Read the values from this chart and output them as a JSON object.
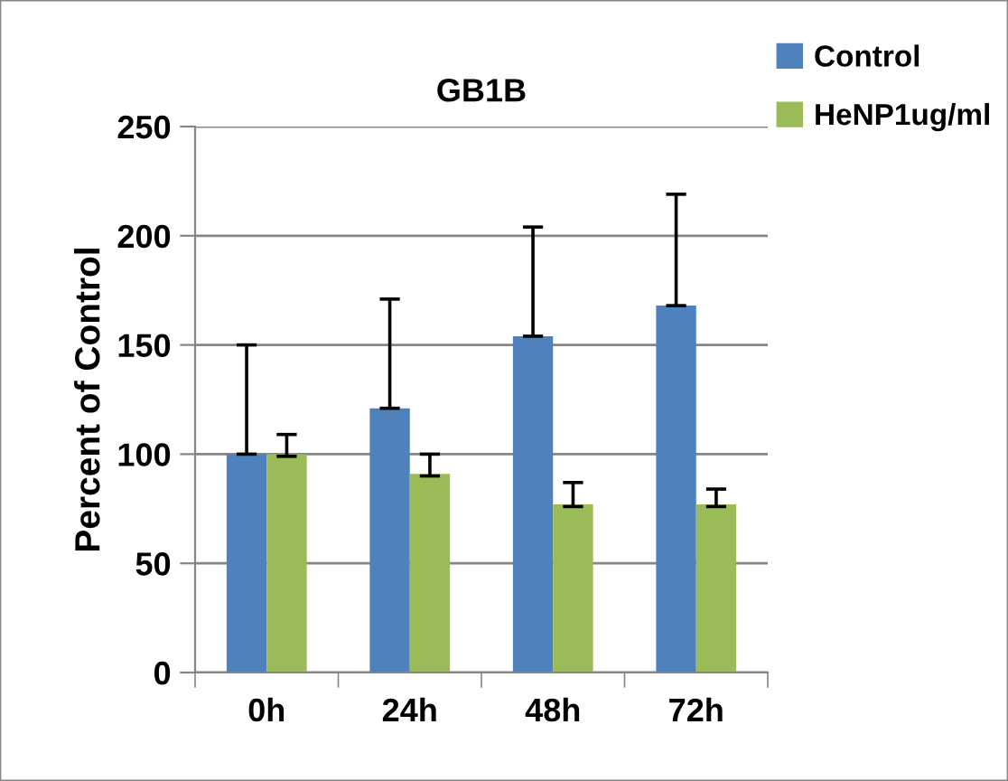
{
  "chart_data": {
    "type": "bar",
    "title": "GB1B",
    "ylabel": "Percent of Control",
    "categories": [
      "0h",
      "24h",
      "48h",
      "72h"
    ],
    "series": [
      {
        "name": "Control",
        "color": "#4f81bd",
        "values": [
          100,
          121,
          154,
          168
        ],
        "errors": [
          [
            100,
            150
          ],
          [
            121,
            171
          ],
          [
            154,
            204
          ],
          [
            168,
            219
          ]
        ]
      },
      {
        "name": "HeNP1ug/ml",
        "color": "#9bbb59",
        "values": [
          100,
          91,
          77,
          77
        ],
        "errors": [
          [
            99,
            109
          ],
          [
            90,
            100
          ],
          [
            76,
            87
          ],
          [
            76,
            84
          ]
        ]
      }
    ],
    "ylim": [
      0,
      250
    ],
    "yticks": [
      0,
      50,
      100,
      150,
      200,
      250
    ],
    "grid": "y",
    "legend": "top right"
  }
}
